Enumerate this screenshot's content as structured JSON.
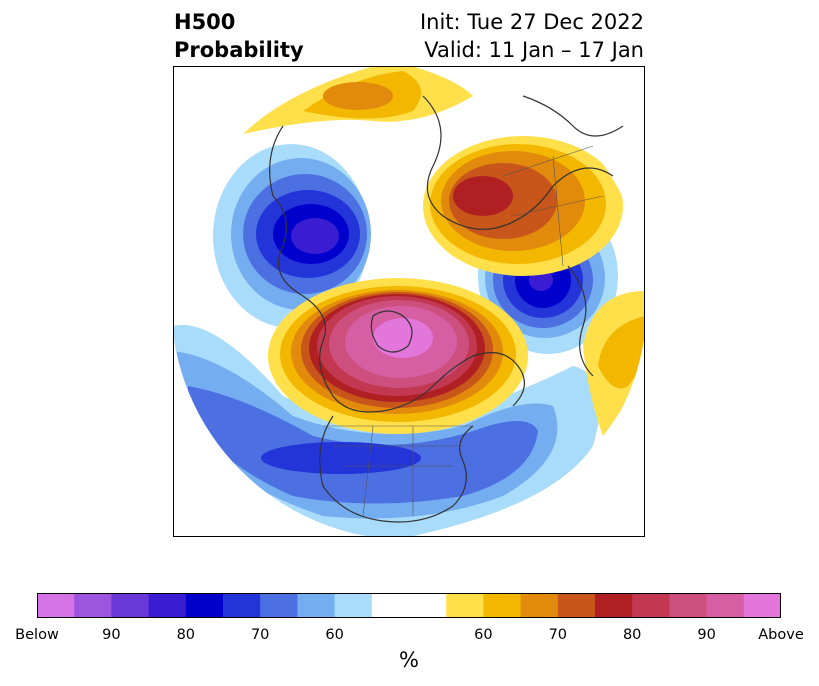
{
  "title": {
    "left_line1": "H500",
    "left_line2": "Probability",
    "right_line1": "Init: Tue 27 Dec 2022",
    "right_line2": "Valid: 11 Jan – 17 Jan"
  },
  "colorbar": {
    "unit": "%",
    "below_colors": [
      "#d472e6",
      "#9d55e0",
      "#6a37d9",
      "#3a1dd3",
      "#0000cc",
      "#2334d8",
      "#4c6fe2",
      "#74aef1",
      "#a9dcfa"
    ],
    "neutral_color": "#ffffff",
    "above_colors": [
      "#ffe04a",
      "#f4b700",
      "#e18a0c",
      "#c8561a",
      "#b01f22",
      "#c23851",
      "#cc4f7d",
      "#d65fa3",
      "#e376db"
    ],
    "tick_labels": [
      "Below",
      "90",
      "80",
      "70",
      "60",
      "60",
      "70",
      "80",
      "90",
      "Above"
    ]
  }
}
